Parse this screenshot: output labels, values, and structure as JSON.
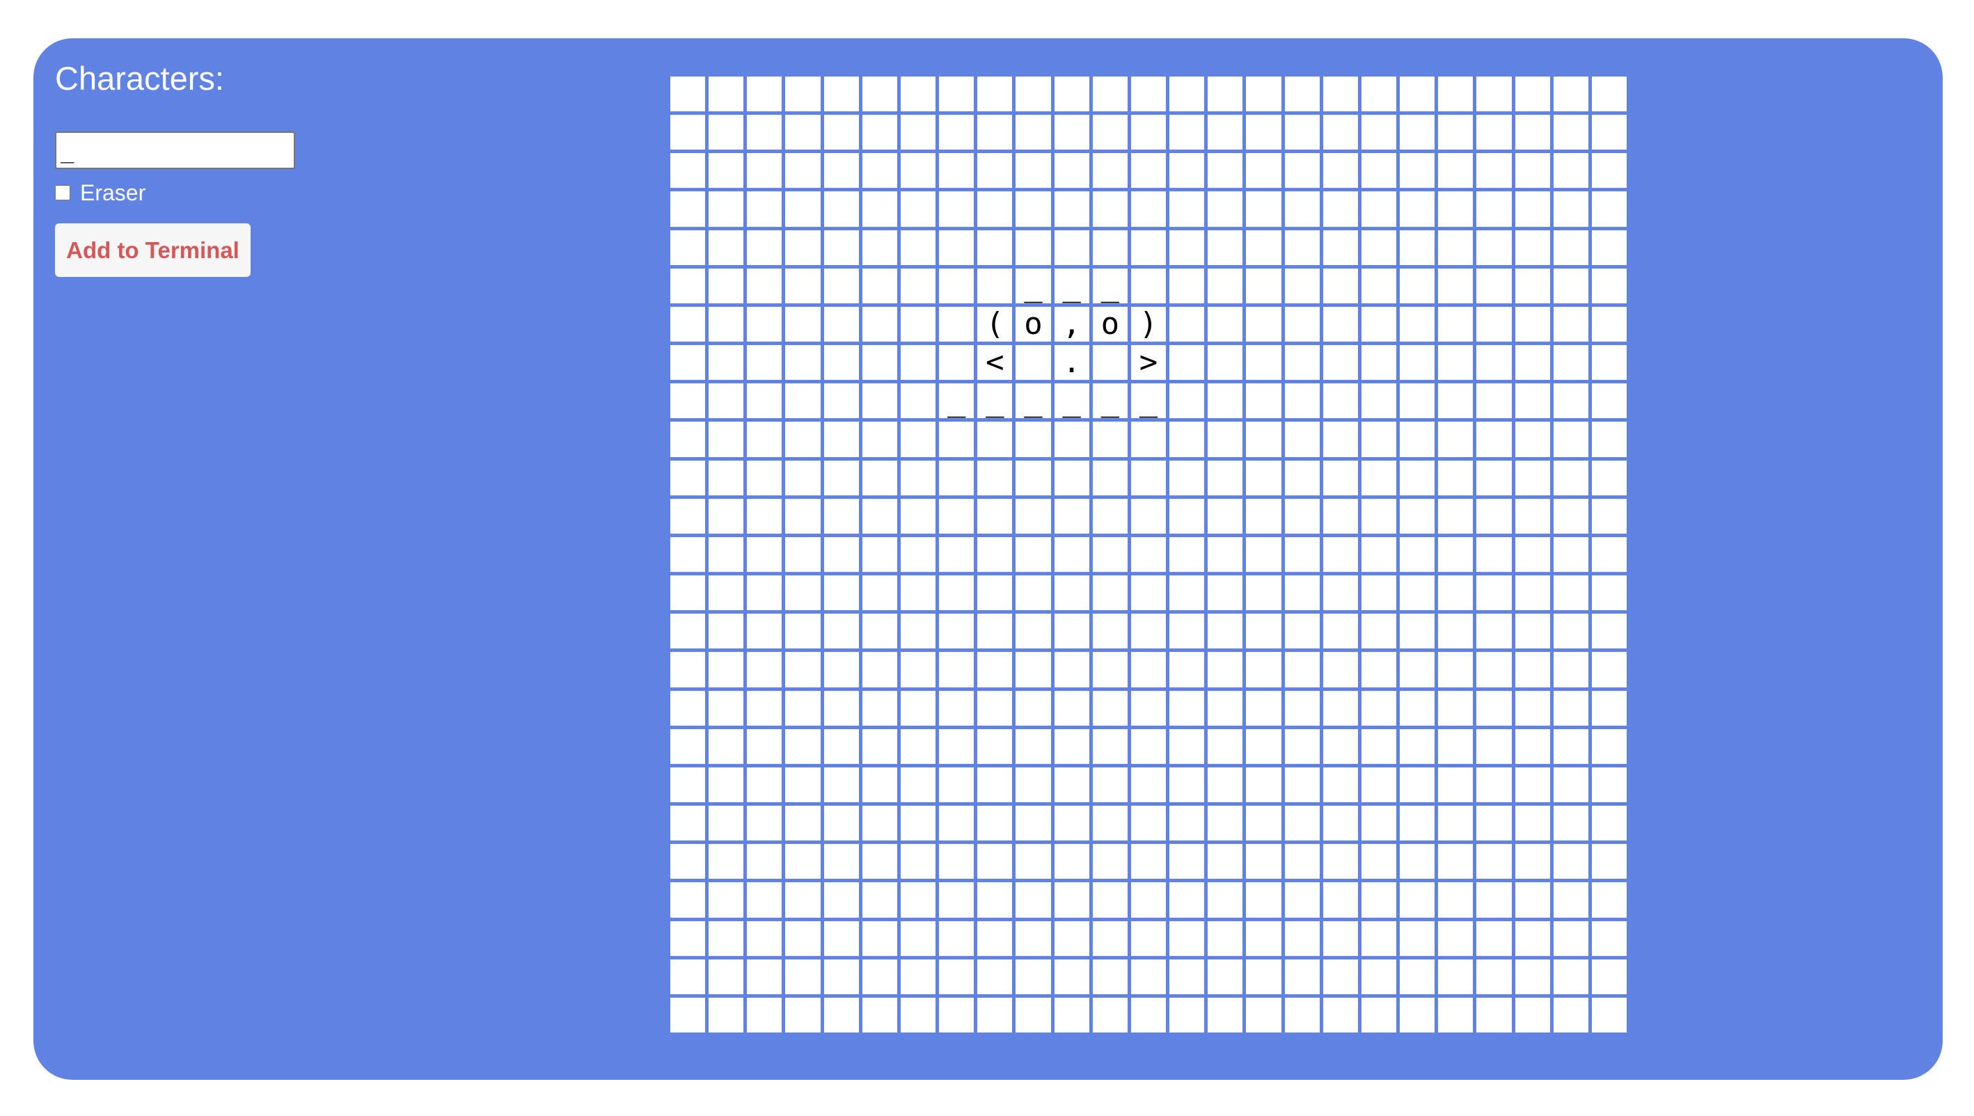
{
  "controls": {
    "characters_label": "Characters:",
    "characters_value": "_",
    "eraser_label": "Eraser",
    "eraser_checked": false,
    "add_button_label": "Add to Terminal"
  },
  "canvas": {
    "rows": 25,
    "cols": 25,
    "cells": [
      {
        "row": 5,
        "col": 9,
        "char": "_"
      },
      {
        "row": 5,
        "col": 10,
        "char": "_"
      },
      {
        "row": 5,
        "col": 11,
        "char": "_"
      },
      {
        "row": 6,
        "col": 8,
        "char": "("
      },
      {
        "row": 6,
        "col": 9,
        "char": "o"
      },
      {
        "row": 6,
        "col": 10,
        "char": ","
      },
      {
        "row": 6,
        "col": 11,
        "char": "o"
      },
      {
        "row": 6,
        "col": 12,
        "char": ")"
      },
      {
        "row": 7,
        "col": 8,
        "char": "<"
      },
      {
        "row": 7,
        "col": 10,
        "char": "."
      },
      {
        "row": 7,
        "col": 12,
        "char": ">"
      },
      {
        "row": 8,
        "col": 7,
        "char": "_"
      },
      {
        "row": 8,
        "col": 8,
        "char": "_"
      },
      {
        "row": 8,
        "col": 9,
        "char": "_"
      },
      {
        "row": 8,
        "col": 10,
        "char": "_"
      },
      {
        "row": 8,
        "col": 11,
        "char": "_"
      },
      {
        "row": 8,
        "col": 12,
        "char": "_"
      }
    ]
  },
  "colors": {
    "background": "#5f82e3",
    "cell": "#ffffff",
    "button_text": "#d65757"
  }
}
